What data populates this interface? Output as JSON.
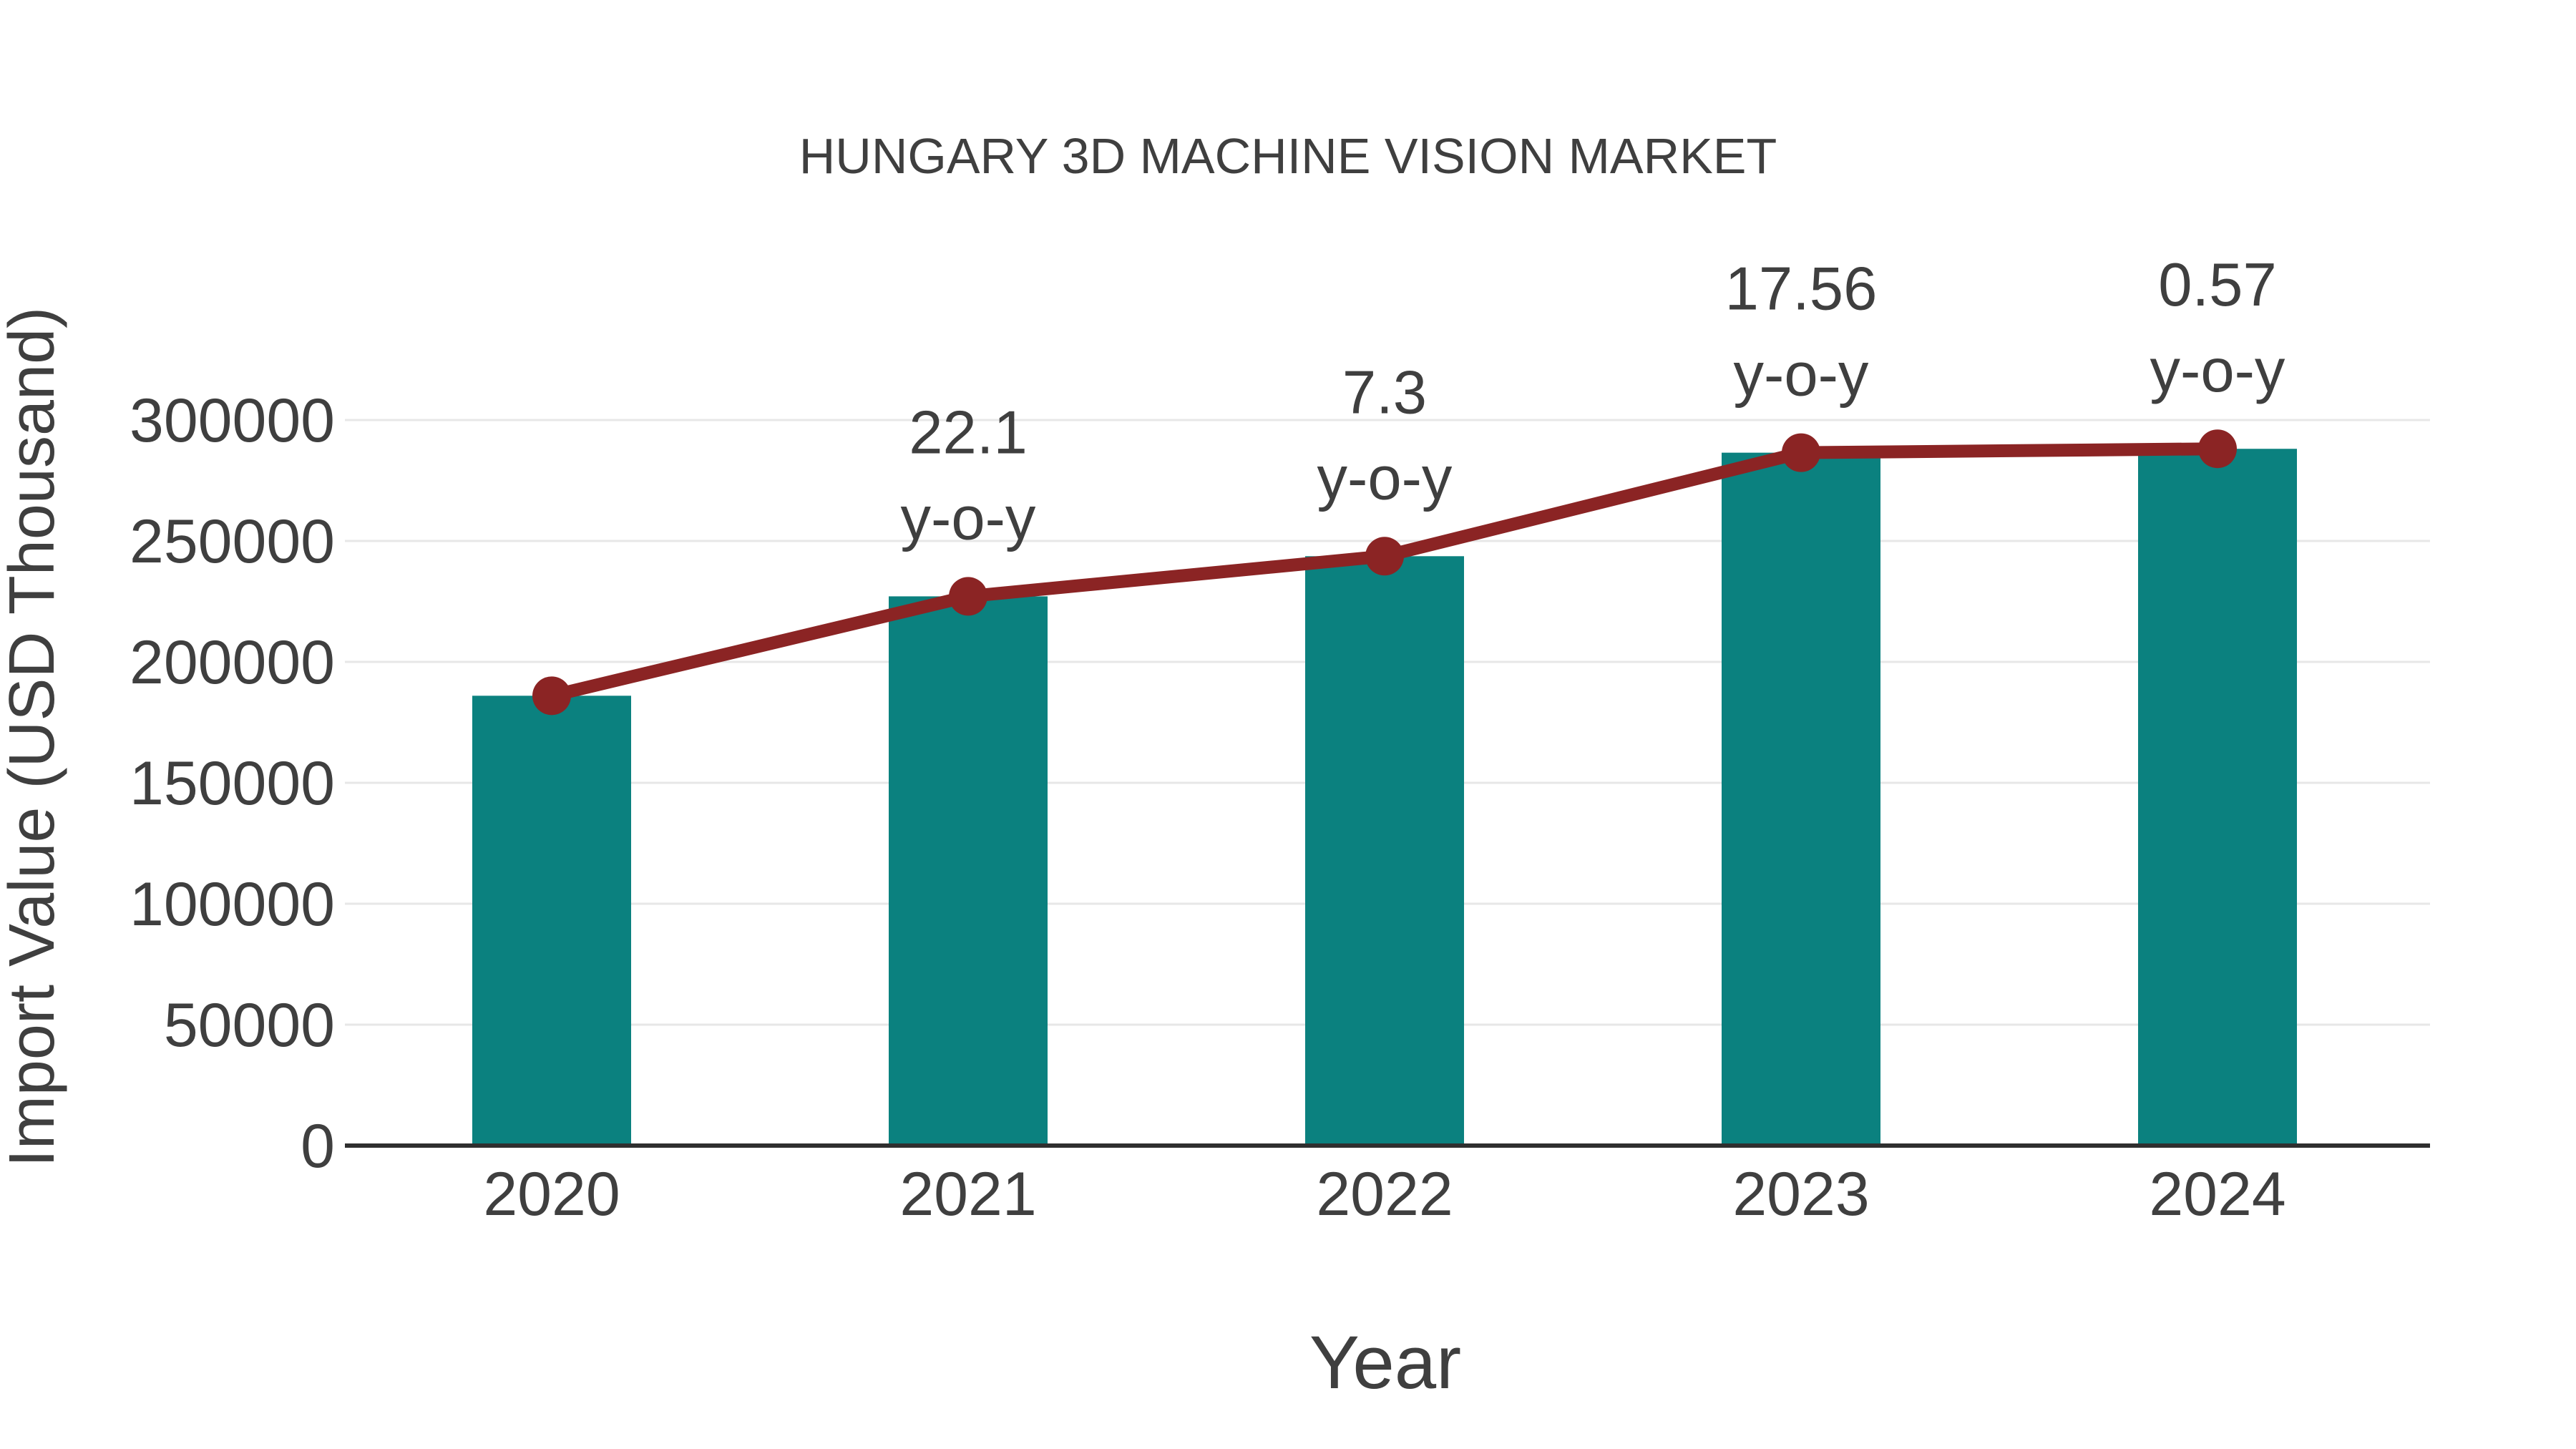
{
  "chart_data": {
    "type": "bar",
    "title": "HUNGARY 3D MACHINE VISION MARKET",
    "xlabel": "Year",
    "ylabel": "Import Value (USD Thousand)",
    "categories": [
      "2020",
      "2021",
      "2022",
      "2023",
      "2024"
    ],
    "series": [
      {
        "name": "Import Value (USD Thousand)",
        "type": "bar",
        "color": "#0b817f",
        "values": [
          186000,
          227100,
          243700,
          286500,
          288100
        ]
      },
      {
        "name": "y-o-y trend line",
        "type": "line",
        "color": "#8b2424",
        "values": [
          186000,
          227100,
          243700,
          286500,
          288100
        ]
      }
    ],
    "annotations": [
      {
        "category": "2021",
        "lines": [
          "22.1",
          "y-o-y"
        ]
      },
      {
        "category": "2022",
        "lines": [
          "7.3",
          "y-o-y"
        ]
      },
      {
        "category": "2023",
        "lines": [
          "17.56",
          "y-o-y"
        ]
      },
      {
        "category": "2024",
        "lines": [
          "0.57",
          "y-o-y"
        ]
      }
    ],
    "yticks": [
      0,
      50000,
      100000,
      150000,
      200000,
      250000,
      300000
    ],
    "ylim": [
      0,
      300000
    ],
    "grid": true,
    "legend_position": "none",
    "colors": {
      "bar": "#0b817f",
      "line": "#8b2424",
      "marker": "#8b2424",
      "text": "#3f3f3f",
      "grid": "#e7e7e7",
      "axis": "#2f2f2f",
      "background": "#ffffff"
    }
  }
}
